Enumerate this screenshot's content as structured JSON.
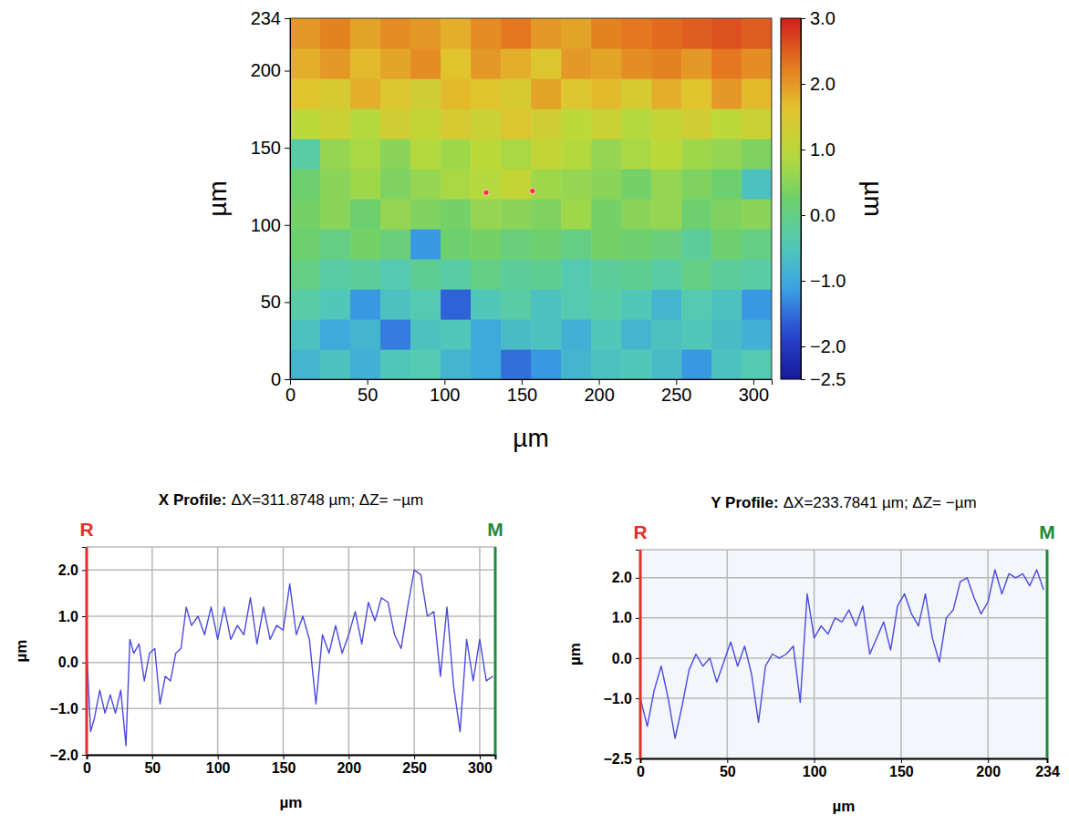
{
  "chart_data": [
    {
      "type": "heatmap",
      "x_label": "µm",
      "y_label": "µm",
      "xlim": [
        0,
        311.87
      ],
      "ylim": [
        0,
        234
      ],
      "xticks": [
        0,
        50,
        100,
        150,
        200,
        250,
        300
      ],
      "yticks": [
        0,
        50,
        100,
        150,
        200,
        234
      ],
      "x": [
        9.75,
        29.25,
        48.75,
        68.25,
        87.75,
        107.25,
        126.75,
        146.25,
        165.75,
        185.25,
        204.75,
        224.25,
        243.75,
        263.25,
        282.75,
        302.25
      ],
      "y": [
        9.75,
        29.25,
        48.75,
        68.25,
        87.75,
        107.25,
        126.75,
        146.25,
        165.75,
        185.25,
        204.75,
        224.25
      ],
      "z": [
        [
          -0.8,
          -0.6,
          -0.9,
          -0.5,
          -0.4,
          -0.8,
          -1.0,
          -1.5,
          -1.2,
          -0.8,
          -0.6,
          -0.5,
          -0.7,
          -1.2,
          -0.6,
          -0.4
        ],
        [
          -0.6,
          -1.0,
          -0.8,
          -1.4,
          -0.6,
          -0.5,
          -1.0,
          -0.7,
          -0.6,
          -0.9,
          -0.5,
          -0.8,
          -0.6,
          -0.5,
          -0.7,
          -0.9
        ],
        [
          -0.3,
          -0.5,
          -1.2,
          -0.6,
          -0.4,
          -1.6,
          -0.5,
          -0.3,
          -0.6,
          -0.4,
          -0.3,
          -0.5,
          -0.8,
          -0.4,
          -0.6,
          -1.2
        ],
        [
          0.0,
          -0.3,
          -0.2,
          -0.4,
          -0.1,
          -0.3,
          0.0,
          -0.2,
          -0.1,
          -0.4,
          -0.2,
          -0.1,
          -0.3,
          0.0,
          -0.2,
          -0.3
        ],
        [
          0.2,
          0.0,
          0.3,
          0.1,
          -1.2,
          0.2,
          0.3,
          0.1,
          0.2,
          0.0,
          0.3,
          0.2,
          0.1,
          -0.2,
          0.2,
          0.0
        ],
        [
          0.3,
          0.5,
          0.2,
          0.6,
          0.4,
          0.3,
          0.6,
          0.5,
          0.4,
          0.7,
          0.3,
          0.5,
          0.6,
          0.2,
          0.4,
          0.5
        ],
        [
          0.2,
          0.5,
          0.7,
          0.4,
          0.6,
          0.8,
          0.9,
          1.1,
          0.7,
          0.6,
          0.5,
          0.3,
          0.6,
          0.4,
          0.2,
          -0.6
        ],
        [
          -0.3,
          0.6,
          0.8,
          0.5,
          0.9,
          0.7,
          1.0,
          0.8,
          1.1,
          0.9,
          0.6,
          0.8,
          1.0,
          0.7,
          0.6,
          0.4
        ],
        [
          1.0,
          1.2,
          0.9,
          1.3,
          1.1,
          1.4,
          1.2,
          1.5,
          1.3,
          1.0,
          1.2,
          0.9,
          1.1,
          1.3,
          1.0,
          1.2
        ],
        [
          1.6,
          1.4,
          1.8,
          1.5,
          1.3,
          1.7,
          1.6,
          1.4,
          1.9,
          1.5,
          1.7,
          1.4,
          1.8,
          1.6,
          2.0,
          1.7
        ],
        [
          1.8,
          2.0,
          1.7,
          1.9,
          2.1,
          1.6,
          2.0,
          1.8,
          1.5,
          2.0,
          1.9,
          2.1,
          2.2,
          2.0,
          2.3,
          2.1
        ],
        [
          2.0,
          2.2,
          1.9,
          2.1,
          2.0,
          1.8,
          2.1,
          2.3,
          2.0,
          1.9,
          2.2,
          2.3,
          2.4,
          2.5,
          2.6,
          2.5
        ]
      ],
      "marker_points": {
        "x": [
          127,
          157
        ],
        "y": [
          121,
          122
        ]
      },
      "colorbar": {
        "label": "µm",
        "range": [
          -2.5,
          3
        ],
        "ticks": [
          {
            "value": 3,
            "label": "3.0"
          },
          {
            "value": 2,
            "label": "2.0"
          },
          {
            "value": 1,
            "label": "1.0"
          },
          {
            "value": 0,
            "label": "0.0"
          },
          {
            "value": -1,
            "label": "−1.0"
          },
          {
            "value": -2,
            "label": "−2.0"
          },
          {
            "value": -2.5,
            "label": "−2.5"
          }
        ]
      }
    },
    {
      "type": "line",
      "title": "X Profile:",
      "subtitle": "ΔX=311.8748 µm; ΔZ= −µm",
      "x_label": "µm",
      "y_label": "µm",
      "xlim": [
        0,
        311.87
      ],
      "ylim": [
        -2,
        2.5
      ],
      "xticks": [
        0,
        50,
        100,
        150,
        200,
        250,
        300
      ],
      "yticks": [
        {
          "value": -2,
          "label": "−2.0"
        },
        {
          "value": -1,
          "label": "−1.0"
        },
        {
          "value": 0,
          "label": "0.0"
        },
        {
          "value": 1,
          "label": "1.0"
        },
        {
          "value": 2,
          "label": "2.0"
        }
      ],
      "grid": true,
      "color": "#4a4ae0",
      "annotations": [
        {
          "text": "R",
          "x": 0,
          "color": "#e0302a"
        },
        {
          "text": "M",
          "x": 311.87,
          "color": "#1e8a3c"
        }
      ],
      "x": [
        0,
        3,
        6,
        10,
        14,
        18,
        22,
        26,
        30,
        33,
        36,
        40,
        44,
        48,
        52,
        56,
        60,
        64,
        68,
        72,
        76,
        80,
        85,
        90,
        95,
        100,
        105,
        110,
        115,
        120,
        125,
        130,
        135,
        140,
        145,
        150,
        155,
        160,
        165,
        170,
        175,
        180,
        185,
        190,
        195,
        200,
        205,
        210,
        215,
        220,
        225,
        230,
        235,
        240,
        245,
        250,
        255,
        260,
        265,
        270,
        275,
        280,
        285,
        290,
        295,
        300,
        305,
        310
      ],
      "values": [
        0.3,
        -1.5,
        -1.2,
        -0.6,
        -1.1,
        -0.7,
        -1.1,
        -0.6,
        -1.8,
        0.5,
        0.2,
        0.4,
        -0.4,
        0.2,
        0.3,
        -0.9,
        -0.3,
        -0.4,
        0.2,
        0.3,
        1.2,
        0.8,
        1.0,
        0.6,
        1.2,
        0.5,
        1.2,
        0.5,
        0.8,
        0.6,
        1.4,
        0.4,
        1.2,
        0.5,
        0.8,
        0.7,
        1.7,
        0.6,
        1.0,
        0.5,
        -0.9,
        0.6,
        0.2,
        0.8,
        0.2,
        0.6,
        1.1,
        0.4,
        1.3,
        0.9,
        1.4,
        1.3,
        0.6,
        0.3,
        1.2,
        2.0,
        1.9,
        1.0,
        1.1,
        -0.3,
        1.2,
        -0.5,
        -1.5,
        0.5,
        -0.4,
        0.5,
        -0.4,
        -0.3
      ]
    },
    {
      "type": "line",
      "title": "Y Profile:",
      "subtitle": "ΔX=233.7841 µm; ΔZ= −µm",
      "x_label": "µm",
      "y_label": "µm",
      "xlim": [
        0,
        234
      ],
      "ylim": [
        -2.5,
        2.7
      ],
      "xticks": [
        0,
        50,
        100,
        150,
        200,
        234
      ],
      "yticks": [
        {
          "value": -2.5,
          "label": "−2.5"
        },
        {
          "value": -1,
          "label": "−1.0"
        },
        {
          "value": 0,
          "label": "0.0"
        },
        {
          "value": 1,
          "label": "1.0"
        },
        {
          "value": 2,
          "label": "2.0"
        }
      ],
      "grid": true,
      "color": "#4a4ae0",
      "annotations": [
        {
          "text": "R",
          "x": 0,
          "color": "#e0302a"
        },
        {
          "text": "M",
          "x": 234,
          "color": "#1e8a3c"
        }
      ],
      "x": [
        0,
        4,
        8,
        12,
        16,
        20,
        24,
        28,
        32,
        36,
        40,
        44,
        48,
        52,
        56,
        60,
        64,
        68,
        72,
        76,
        80,
        84,
        88,
        92,
        96,
        100,
        104,
        108,
        112,
        116,
        120,
        124,
        128,
        132,
        136,
        140,
        144,
        148,
        152,
        156,
        160,
        164,
        168,
        172,
        176,
        180,
        184,
        188,
        192,
        196,
        200,
        204,
        208,
        212,
        216,
        220,
        224,
        228,
        232
      ],
      "values": [
        -1.0,
        -1.7,
        -0.8,
        -0.2,
        -1.0,
        -2.0,
        -1.2,
        -0.3,
        0.1,
        -0.2,
        0.0,
        -0.6,
        -0.1,
        0.4,
        -0.2,
        0.3,
        -0.4,
        -1.6,
        -0.2,
        0.1,
        0.0,
        0.1,
        0.3,
        -1.1,
        1.6,
        0.5,
        0.8,
        0.6,
        1.0,
        0.9,
        1.2,
        0.8,
        1.3,
        0.1,
        0.5,
        0.9,
        0.2,
        1.3,
        1.6,
        1.1,
        0.8,
        1.6,
        0.5,
        -0.1,
        1.0,
        1.2,
        1.9,
        2.0,
        1.5,
        1.1,
        1.4,
        2.2,
        1.6,
        2.1,
        2.0,
        2.1,
        1.8,
        2.2,
        1.7
      ]
    }
  ]
}
